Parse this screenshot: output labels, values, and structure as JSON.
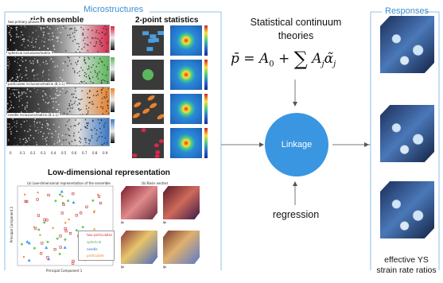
{
  "microstructures": {
    "header": "Microstructures",
    "ensemble_title": "rich ensemble",
    "stats_title": "2-point statistics",
    "rows": [
      {
        "label": "two primary phases",
        "color": "#d8284a"
      },
      {
        "label": "spherical inclusions/matrix",
        "color": "#5cb85c"
      },
      {
        "label": "particulate inclusions/matrix (8:1:1)",
        "color": "#e8822e"
      },
      {
        "label": "needle inclusions/matrix (8:1:1)",
        "color": "#3a78c8"
      }
    ],
    "axis_ticks": [
      "0",
      "0.1",
      "0.2",
      "0.3",
      "0.4",
      "0.5",
      "0.6",
      "0.7",
      "0.8",
      "0.9"
    ]
  },
  "low_dim": {
    "title": "Low-dimensional representation",
    "sub_a": "(a) Low-dimensional representation of the ensemble",
    "sub_b": "(b) Basis vectors",
    "xlabel": "Principal Component 1",
    "ylabel": "Principal Component 2",
    "legend": [
      "two particulates",
      "spherical",
      "needle",
      "particulate"
    ],
    "basis_labels": [
      "φ₁",
      "φ₂",
      "φ₃",
      "φ₄"
    ]
  },
  "center": {
    "theory": "Statistical continuum theories",
    "linkage": "Linkage",
    "regression": "regression"
  },
  "responses": {
    "header": "Responses",
    "caption_line1": "effective YS",
    "caption_line2": "strain rate ratios"
  },
  "colors": {
    "accent": "#3b8fd1",
    "linkage_fill": "#3a96e0",
    "frame": "#8cc0e8"
  }
}
